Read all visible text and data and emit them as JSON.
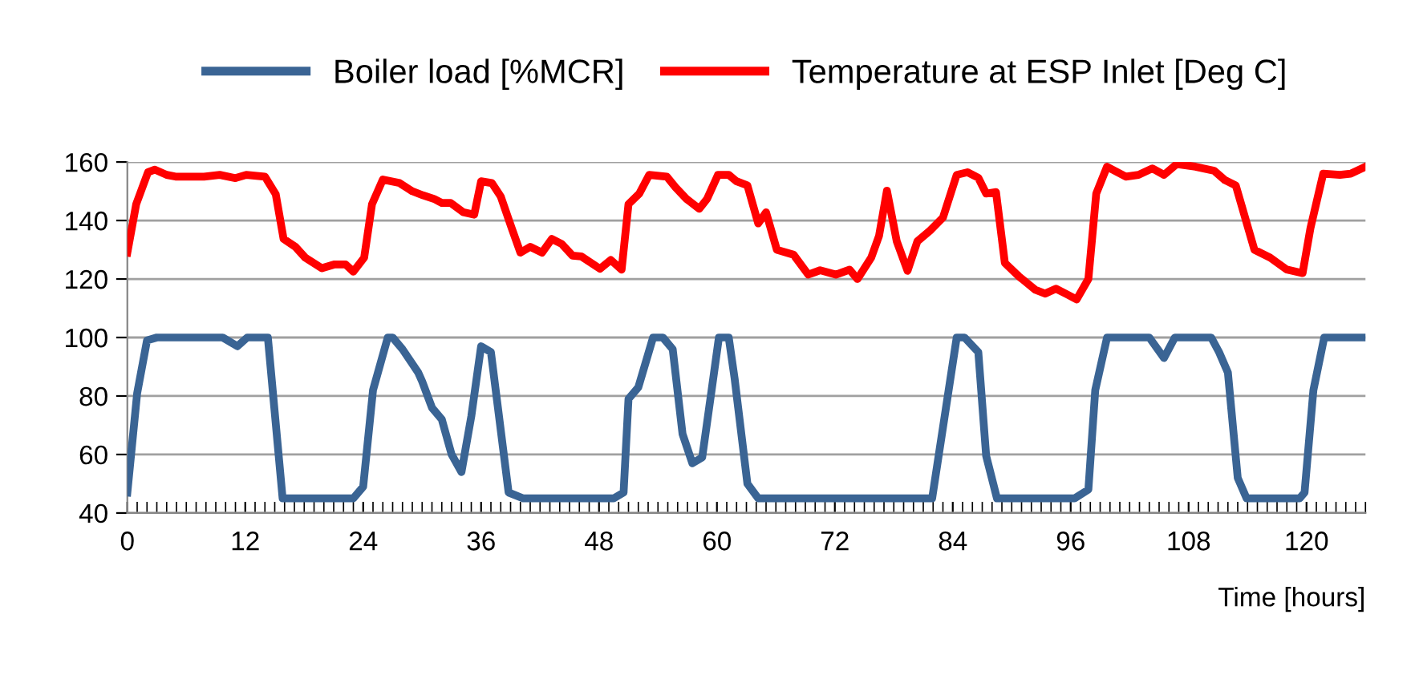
{
  "chart_data": {
    "type": "line",
    "xlabel": "Time [hours]",
    "xlim": [
      0,
      126
    ],
    "xticks": [
      0,
      12,
      24,
      36,
      48,
      60,
      72,
      84,
      96,
      108,
      120
    ],
    "ylim": [
      40,
      160
    ],
    "yticks": [
      40,
      60,
      80,
      100,
      120,
      140,
      160
    ],
    "grid": "y",
    "legend": "top",
    "marker": "none",
    "line_style": "solid",
    "series": [
      {
        "name": "Boiler load [%MCR]",
        "color": "#3a6494",
        "x": [
          0,
          1,
          2,
          3,
          9.7,
          11.2,
          12.2,
          14.3,
          15.8,
          23,
          24,
          25,
          26.5,
          27,
          28,
          29.6,
          30,
          31,
          32,
          33,
          34,
          35,
          36,
          37,
          38.8,
          40.3,
          49.5,
          50.5,
          51,
          52,
          53.5,
          54.5,
          55.5,
          56.5,
          57.5,
          58.5,
          59.5,
          60.2,
          61.2,
          61.8,
          63.1,
          64.2,
          81.9,
          84.4,
          85.2,
          86.6,
          87.4,
          88.5,
          96.4,
          97.8,
          98.5,
          99.7,
          104,
          105.5,
          106.6,
          110.3,
          111.1,
          112,
          113,
          113.9,
          119.3,
          119.8,
          120.7,
          121.8,
          126
        ],
        "values": [
          47,
          81,
          99,
          100,
          100,
          97,
          100,
          100,
          45,
          45,
          49,
          82,
          100,
          100,
          96,
          88,
          85,
          76,
          72,
          60,
          54,
          73,
          97,
          95,
          47,
          45,
          45,
          47,
          79,
          83,
          100,
          100,
          96,
          67,
          57,
          59,
          83,
          100,
          100,
          86,
          50,
          45,
          45,
          100,
          100,
          95,
          59.5,
          45,
          45,
          48,
          82,
          100,
          100,
          93,
          100,
          100,
          95,
          88,
          52,
          45,
          45,
          47,
          82,
          100,
          100
        ]
      },
      {
        "name": "Temperature at ESP Inlet [Deg C]",
        "color": "#ff0000",
        "x": [
          0,
          0.9,
          2.1,
          2.8,
          4,
          4.9,
          7.8,
          9.4,
          11,
          12.1,
          14,
          15.1,
          15.9,
          17.1,
          18.1,
          19.8,
          21.1,
          22.2,
          23,
          24.1,
          24.9,
          26,
          27.7,
          29,
          30.1,
          31.2,
          32,
          32.9,
          34.2,
          35.3,
          36,
          37.1,
          38,
          39.1,
          40,
          41,
          42.2,
          43.2,
          44.2,
          45.3,
          46.2,
          48.1,
          49.2,
          50.3,
          51,
          52.1,
          53.1,
          54.9,
          55.8,
          56.9,
          58.2,
          59,
          60.1,
          61.2,
          62,
          63.1,
          64.2,
          65,
          66.1,
          67.8,
          69.3,
          70.5,
          72.1,
          73.5,
          74.3,
          75.7,
          76.5,
          77.3,
          78.3,
          79.4,
          80.4,
          81.7,
          83,
          84.4,
          85.5,
          86.6,
          87.4,
          88.4,
          89.3,
          90.7,
          92.4,
          93.4,
          94.5,
          95.6,
          96.6,
          97.8,
          98.6,
          99.7,
          101.6,
          102.9,
          104.3,
          105.5,
          106.8,
          108.7,
          110.6,
          111.7,
          112.8,
          114.7,
          116.3,
          118,
          119.6,
          120.4,
          121.7,
          123.4,
          124.5,
          126
        ],
        "values": [
          129,
          145.6,
          156.5,
          157.4,
          155.6,
          155,
          155,
          155.6,
          154.5,
          155.6,
          155,
          149,
          133.7,
          131,
          127.3,
          123.7,
          125,
          125,
          122.5,
          127.3,
          145.6,
          154,
          152.8,
          150,
          148.6,
          147.4,
          146,
          146,
          142.8,
          142,
          153.4,
          152.8,
          148.2,
          137.5,
          129,
          131,
          129,
          133.7,
          132,
          128,
          127.7,
          123.5,
          126.5,
          123.2,
          145.6,
          149.2,
          155.6,
          155,
          151.3,
          147.4,
          144,
          147.4,
          155.6,
          155.6,
          153.4,
          152,
          139,
          142.8,
          130,
          128.3,
          121.5,
          123,
          121.5,
          123.2,
          120,
          127.3,
          134.8,
          150.2,
          132.9,
          122.8,
          132.9,
          136.6,
          141,
          155.6,
          156.5,
          154.6,
          149.2,
          149.7,
          125.5,
          121,
          116.3,
          115,
          116.7,
          114.8,
          113,
          120,
          149.2,
          158.4,
          155,
          155.6,
          157.8,
          155.6,
          159.3,
          158.4,
          157,
          153.8,
          152,
          130,
          127.3,
          123.2,
          122,
          137.4,
          156,
          155.6,
          156,
          158.4
        ]
      }
    ]
  }
}
